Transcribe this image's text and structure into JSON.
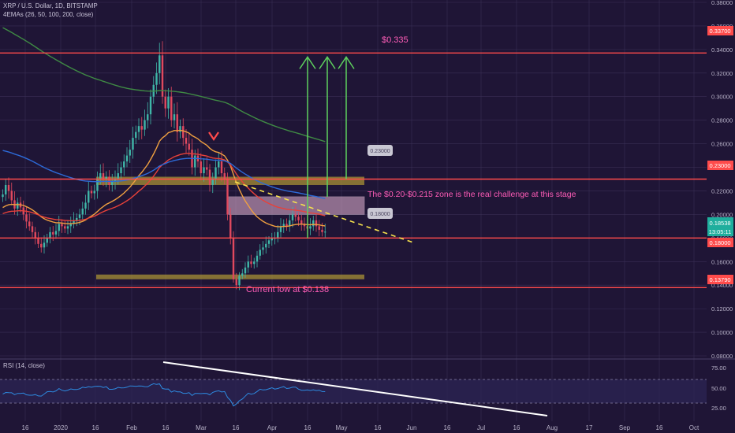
{
  "header": {
    "symbol": "XRP / U.S. Dollar, 1D, BITSTAMP",
    "indicator": "4EMAs (26, 50, 100, 200, close)",
    "rsi_label": "RSI (14, close)"
  },
  "colors": {
    "background": "#1f1536",
    "grid": "#3a2f55",
    "axis_text": "#b8b2c8",
    "candle_up": "#3fb6a8",
    "candle_down": "#e0495e",
    "level_line": "#ff4b4b",
    "target_arrows": "#5ed15e",
    "zone_fill": "#e7b5d4",
    "support_band": "#a89035",
    "annotation": "#ff5db8",
    "price_tag": "#1fae9d",
    "rsi_line": "#2d8ae0",
    "trend_white": "#ffffff",
    "trend_yellow": "#f7e34d"
  },
  "chart_data": {
    "type": "candlestick",
    "title": "XRP / U.S. Dollar, 1D, BITSTAMP",
    "price_axis": {
      "min": 0.08,
      "max": 0.38,
      "ticks": [
        "0.38000",
        "0.36000",
        "0.34000",
        "0.32000",
        "0.30000",
        "0.28000",
        "0.26000",
        "0.24000",
        "0.22000",
        "0.20000",
        "0.18000",
        "0.16000",
        "0.14000",
        "0.12000",
        "0.10000",
        "0.08000"
      ]
    },
    "x_ticks": [
      "16",
      "2020",
      "16",
      "Feb",
      "16",
      "Mar",
      "16",
      "Apr",
      "16",
      "May",
      "16",
      "Jun",
      "16",
      "Jul",
      "16",
      "Aug",
      "17",
      "Sep",
      "16",
      "Oct"
    ],
    "horizontal_levels": [
      {
        "price": 0.337,
        "label": "0.33700"
      },
      {
        "price": 0.23,
        "label": "0.23000"
      },
      {
        "price": 0.18,
        "label": "0.18000"
      },
      {
        "price": 0.1379,
        "label": "0.13790"
      }
    ],
    "current_price": {
      "value": 0.18538,
      "label": "0.18538",
      "countdown": "13:05:11"
    },
    "callouts": [
      {
        "label": "0.23000",
        "price": 0.23
      },
      {
        "label": "0.18000",
        "price": 0.18
      }
    ],
    "annotations": [
      {
        "text": "$0.335"
      },
      {
        "text": "The $0.20-$0.215 zone is the real challenge at this stage"
      },
      {
        "text": "Current low at $0.138"
      }
    ],
    "zones": [
      {
        "type": "resistance",
        "from": 0.2,
        "to": 0.215
      },
      {
        "type": "support",
        "from": 0.225,
        "to": 0.232
      },
      {
        "type": "support",
        "from": 0.145,
        "to": 0.149
      }
    ],
    "ema_series": [
      {
        "period": 26,
        "color": "#f0a040"
      },
      {
        "period": 50,
        "color": "#e8413a"
      },
      {
        "period": 100,
        "color": "#2d6ad8"
      },
      {
        "period": 200,
        "color": "#3f8a44"
      }
    ],
    "candles": {
      "start_date": "2019-12-01",
      "closes": [
        0.217,
        0.225,
        0.22,
        0.212,
        0.205,
        0.21,
        0.206,
        0.2,
        0.194,
        0.19,
        0.185,
        0.18,
        0.175,
        0.172,
        0.176,
        0.18,
        0.185,
        0.183,
        0.186,
        0.192,
        0.19,
        0.188,
        0.19,
        0.192,
        0.195,
        0.197,
        0.2,
        0.205,
        0.21,
        0.22,
        0.218,
        0.22,
        0.23,
        0.235,
        0.23,
        0.232,
        0.225,
        0.228,
        0.23,
        0.235,
        0.24,
        0.245,
        0.25,
        0.255,
        0.265,
        0.27,
        0.275,
        0.272,
        0.28,
        0.285,
        0.3,
        0.31,
        0.32,
        0.335,
        0.3,
        0.29,
        0.3,
        0.28,
        0.285,
        0.27,
        0.275,
        0.265,
        0.26,
        0.255,
        0.24,
        0.25,
        0.245,
        0.235,
        0.24,
        0.238,
        0.225,
        0.23,
        0.24,
        0.245,
        0.235,
        0.23,
        0.2,
        0.18,
        0.145,
        0.14,
        0.148,
        0.15,
        0.155,
        0.16,
        0.158,
        0.16,
        0.165,
        0.17,
        0.172,
        0.175,
        0.178,
        0.18,
        0.18,
        0.185,
        0.19,
        0.192,
        0.19,
        0.195,
        0.2,
        0.198,
        0.195,
        0.192,
        0.19,
        0.188,
        0.19,
        0.195,
        0.19,
        0.187,
        0.185,
        0.18538
      ]
    },
    "rsi": {
      "axis_ticks": [
        "75.00",
        "50.00",
        "25.00"
      ],
      "band_upper": 70,
      "band_lower": 30,
      "last": 52
    }
  }
}
